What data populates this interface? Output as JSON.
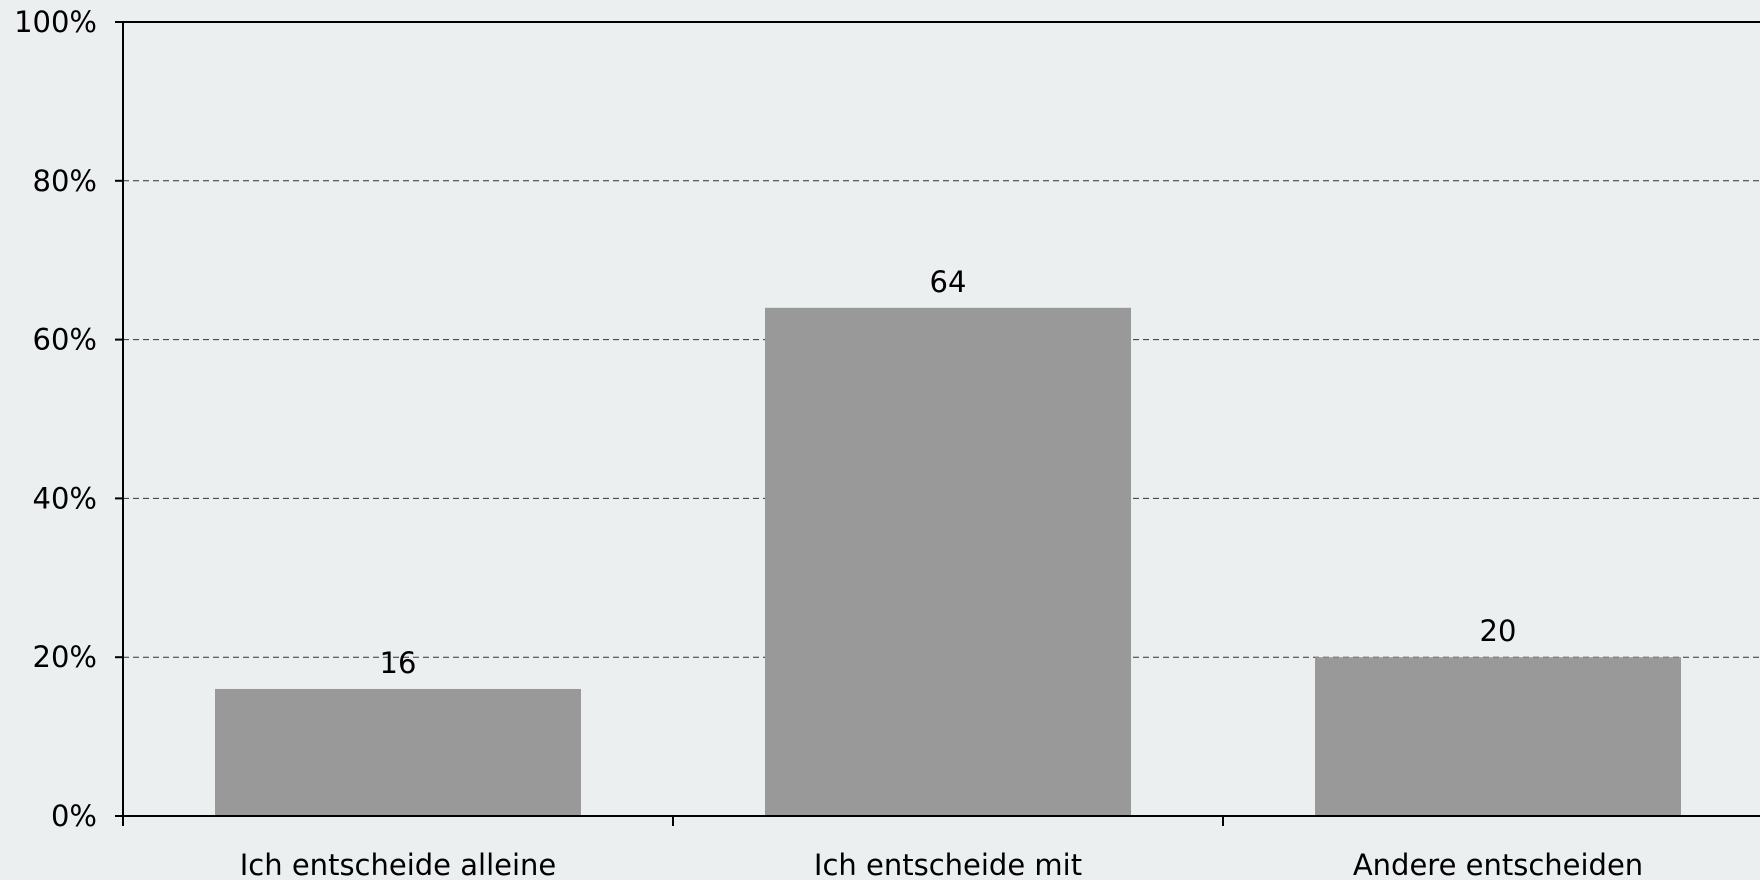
{
  "chart_data": {
    "type": "bar",
    "title": "",
    "xlabel": "",
    "ylabel": "",
    "categories": [
      "Ich entscheide alleine",
      "Ich entscheide mit",
      "Andere entscheiden"
    ],
    "values": [
      16,
      64,
      20
    ],
    "data_labels": [
      "16",
      "64",
      "20"
    ],
    "ylim": [
      0,
      100
    ],
    "y_ticks": [
      0,
      20,
      40,
      60,
      80,
      100
    ],
    "y_tick_labels": [
      "0%",
      "20%",
      "40%",
      "60%",
      "80%",
      "100%"
    ],
    "grid": true,
    "bar_color": "#999999",
    "background_color": "#ebeff0"
  }
}
